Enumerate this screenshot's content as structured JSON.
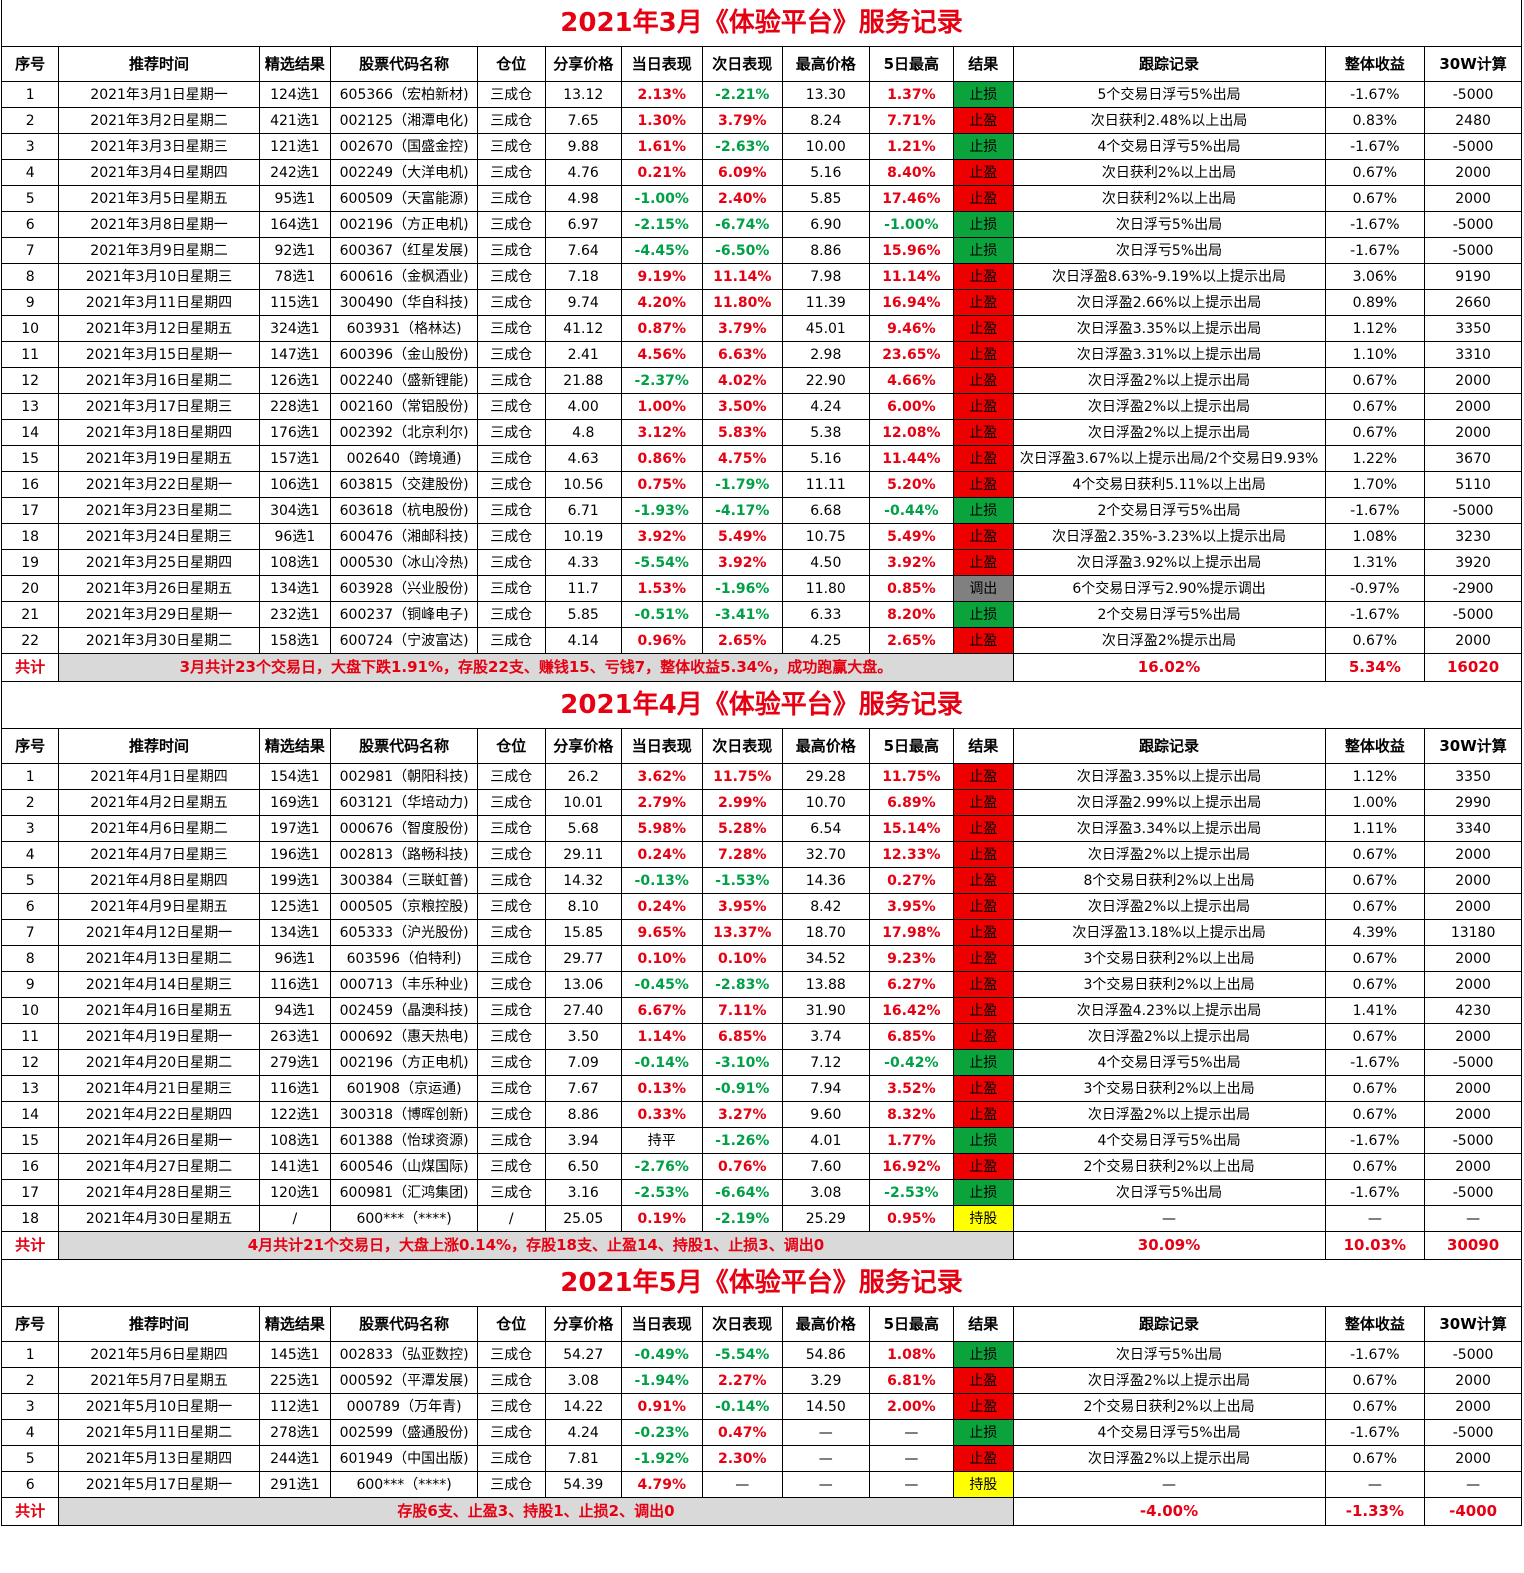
{
  "colors": {
    "red": "#e60012",
    "green": "#00a046",
    "win": "#ee0000",
    "loss": "#0aa33c",
    "out": "#808080",
    "hold": "#ffff00",
    "note_bg": "#d9d9d9"
  },
  "headers": [
    "序号",
    "推荐时间",
    "精选结果",
    "股票代码名称",
    "仓位",
    "分享价格",
    "当日表现",
    "次日表现",
    "最高价格",
    "5日最高",
    "结果",
    "跟踪记录",
    "整体收益",
    "30W计算"
  ],
  "sections": [
    {
      "title": "2021年3月《体验平台》服务记录",
      "rows": [
        [
          "1",
          "2021年3月1日星期一",
          "124选1",
          "605366（宏柏新材)",
          "三成仓",
          "13.12",
          "2.13%",
          "-2.21%",
          "13.30",
          "1.37%",
          "止损",
          "5个交易日浮亏5%出局",
          "-1.67%",
          "-5000"
        ],
        [
          "2",
          "2021年3月2日星期二",
          "421选1",
          "002125（湘潭电化)",
          "三成仓",
          "7.65",
          "1.30%",
          "3.79%",
          "8.24",
          "7.71%",
          "止盈",
          "次日获利2.48%以上出局",
          "0.83%",
          "2480"
        ],
        [
          "3",
          "2021年3月3日星期三",
          "121选1",
          "002670（国盛金控)",
          "三成仓",
          "9.88",
          "1.61%",
          "-2.63%",
          "10.00",
          "1.21%",
          "止损",
          "4个交易日浮亏5%出局",
          "-1.67%",
          "-5000"
        ],
        [
          "4",
          "2021年3月4日星期四",
          "242选1",
          "002249（大洋电机)",
          "三成仓",
          "4.76",
          "0.21%",
          "6.09%",
          "5.16",
          "8.40%",
          "止盈",
          "次日获利2%以上出局",
          "0.67%",
          "2000"
        ],
        [
          "5",
          "2021年3月5日星期五",
          "95选1",
          "600509（天富能源)",
          "三成仓",
          "4.98",
          "-1.00%",
          "2.40%",
          "5.85",
          "17.46%",
          "止盈",
          "次日获利2%以上出局",
          "0.67%",
          "2000"
        ],
        [
          "6",
          "2021年3月8日星期一",
          "164选1",
          "002196（方正电机)",
          "三成仓",
          "6.97",
          "-2.15%",
          "-6.74%",
          "6.90",
          "-1.00%",
          "止损",
          "次日浮亏5%出局",
          "-1.67%",
          "-5000"
        ],
        [
          "7",
          "2021年3月9日星期二",
          "92选1",
          "600367（红星发展)",
          "三成仓",
          "7.64",
          "-4.45%",
          "-6.50%",
          "8.86",
          "15.96%",
          "止损",
          "次日浮亏5%出局",
          "-1.67%",
          "-5000"
        ],
        [
          "8",
          "2021年3月10日星期三",
          "78选1",
          "600616（金枫酒业)",
          "三成仓",
          "7.18",
          "9.19%",
          "11.14%",
          "7.98",
          "11.14%",
          "止盈",
          "次日浮盈8.63%-9.19%以上提示出局",
          "3.06%",
          "9190"
        ],
        [
          "9",
          "2021年3月11日星期四",
          "115选1",
          "300490（华自科技)",
          "三成仓",
          "9.74",
          "4.20%",
          "11.80%",
          "11.39",
          "16.94%",
          "止盈",
          "次日浮盈2.66%以上提示出局",
          "0.89%",
          "2660"
        ],
        [
          "10",
          "2021年3月12日星期五",
          "324选1",
          "603931（格林达)",
          "三成仓",
          "41.12",
          "0.87%",
          "3.79%",
          "45.01",
          "9.46%",
          "止盈",
          "次日浮盈3.35%以上提示出局",
          "1.12%",
          "3350"
        ],
        [
          "11",
          "2021年3月15日星期一",
          "147选1",
          "600396（金山股份)",
          "三成仓",
          "2.41",
          "4.56%",
          "6.63%",
          "2.98",
          "23.65%",
          "止盈",
          "次日浮盈3.31%以上提示出局",
          "1.10%",
          "3310"
        ],
        [
          "12",
          "2021年3月16日星期二",
          "126选1",
          "002240（盛新锂能)",
          "三成仓",
          "21.88",
          "-2.37%",
          "4.02%",
          "22.90",
          "4.66%",
          "止盈",
          "次日浮盈2%以上提示出局",
          "0.67%",
          "2000"
        ],
        [
          "13",
          "2021年3月17日星期三",
          "228选1",
          "002160（常铝股份)",
          "三成仓",
          "4.00",
          "1.00%",
          "3.50%",
          "4.24",
          "6.00%",
          "止盈",
          "次日浮盈2%以上提示出局",
          "0.67%",
          "2000"
        ],
        [
          "14",
          "2021年3月18日星期四",
          "176选1",
          "002392（北京利尔)",
          "三成仓",
          "4.8",
          "3.12%",
          "5.83%",
          "5.38",
          "12.08%",
          "止盈",
          "次日浮盈2%以上提示出局",
          "0.67%",
          "2000"
        ],
        [
          "15",
          "2021年3月19日星期五",
          "157选1",
          "002640（跨境通)",
          "三成仓",
          "4.63",
          "0.86%",
          "4.75%",
          "5.16",
          "11.44%",
          "止盈",
          "次日浮盈3.67%以上提示出局/2个交易日9.93%",
          "1.22%",
          "3670"
        ],
        [
          "16",
          "2021年3月22日星期一",
          "106选1",
          "603815（交建股份)",
          "三成仓",
          "10.56",
          "0.75%",
          "-1.79%",
          "11.11",
          "5.20%",
          "止盈",
          "4个交易日获利5.11%以上出局",
          "1.70%",
          "5110"
        ],
        [
          "17",
          "2021年3月23日星期二",
          "304选1",
          "603618（杭电股份)",
          "三成仓",
          "6.71",
          "-1.93%",
          "-4.17%",
          "6.68",
          "-0.44%",
          "止损",
          "2个交易日浮亏5%出局",
          "-1.67%",
          "-5000"
        ],
        [
          "18",
          "2021年3月24日星期三",
          "96选1",
          "600476（湘邮科技)",
          "三成仓",
          "10.19",
          "3.92%",
          "5.49%",
          "10.75",
          "5.49%",
          "止盈",
          "次日浮盈2.35%-3.23%以上提示出局",
          "1.08%",
          "3230"
        ],
        [
          "19",
          "2021年3月25日星期四",
          "108选1",
          "000530（冰山冷热)",
          "三成仓",
          "4.33",
          "-5.54%",
          "3.92%",
          "4.50",
          "3.92%",
          "止盈",
          "次日浮盈3.92%以上提示出局",
          "1.31%",
          "3920"
        ],
        [
          "20",
          "2021年3月26日星期五",
          "134选1",
          "603928（兴业股份)",
          "三成仓",
          "11.7",
          "1.53%",
          "-1.96%",
          "11.80",
          "0.85%",
          "调出",
          "6个交易日浮亏2.90%提示调出",
          "-0.97%",
          "-2900"
        ],
        [
          "21",
          "2021年3月29日星期一",
          "232选1",
          "600237（铜峰电子)",
          "三成仓",
          "5.85",
          "-0.51%",
          "-3.41%",
          "6.33",
          "8.20%",
          "止损",
          "2个交易日浮亏5%出局",
          "-1.67%",
          "-5000"
        ],
        [
          "22",
          "2021年3月30日星期二",
          "158选1",
          "600724（宁波富达)",
          "三成仓",
          "4.14",
          "0.96%",
          "2.65%",
          "4.25",
          "2.65%",
          "止盈",
          "次日浮盈2%提示出局",
          "0.67%",
          "2000"
        ]
      ],
      "summary": {
        "label": "共计",
        "note": "3月共计23个交易日，大盘下跌1.91%，存股22支、赚钱15、亏钱7，整体收益5.34%，成功跑赢大盘。",
        "track": "16.02%",
        "gain": "5.34%",
        "calc": "16020"
      }
    },
    {
      "title": "2021年4月《体验平台》服务记录",
      "rows": [
        [
          "1",
          "2021年4月1日星期四",
          "154选1",
          "002981（朝阳科技)",
          "三成仓",
          "26.2",
          "3.62%",
          "11.75%",
          "29.28",
          "11.75%",
          "止盈",
          "次日浮盈3.35%以上提示出局",
          "1.12%",
          "3350"
        ],
        [
          "2",
          "2021年4月2日星期五",
          "169选1",
          "603121（华培动力)",
          "三成仓",
          "10.01",
          "2.79%",
          "2.99%",
          "10.70",
          "6.89%",
          "止盈",
          "次日浮盈2.99%以上提示出局",
          "1.00%",
          "2990"
        ],
        [
          "3",
          "2021年4月6日星期二",
          "197选1",
          "000676（智度股份)",
          "三成仓",
          "5.68",
          "5.98%",
          "5.28%",
          "6.54",
          "15.14%",
          "止盈",
          "次日浮盈3.34%以上提示出局",
          "1.11%",
          "3340"
        ],
        [
          "4",
          "2021年4月7日星期三",
          "196选1",
          "002813（路畅科技)",
          "三成仓",
          "29.11",
          "0.24%",
          "7.28%",
          "32.70",
          "12.33%",
          "止盈",
          "次日浮盈2%以上提示出局",
          "0.67%",
          "2000"
        ],
        [
          "5",
          "2021年4月8日星期四",
          "199选1",
          "300384（三联虹普)",
          "三成仓",
          "14.32",
          "-0.13%",
          "-1.53%",
          "14.36",
          "0.27%",
          "止盈",
          "8个交易日获利2%以上出局",
          "0.67%",
          "2000"
        ],
        [
          "6",
          "2021年4月9日星期五",
          "125选1",
          "000505（京粮控股)",
          "三成仓",
          "8.10",
          "0.24%",
          "3.95%",
          "8.42",
          "3.95%",
          "止盈",
          "次日浮盈2%以上提示出局",
          "0.67%",
          "2000"
        ],
        [
          "7",
          "2021年4月12日星期一",
          "134选1",
          "605333（沪光股份)",
          "三成仓",
          "15.85",
          "9.65%",
          "13.37%",
          "18.70",
          "17.98%",
          "止盈",
          "次日浮盈13.18%以上提示出局",
          "4.39%",
          "13180"
        ],
        [
          "8",
          "2021年4月13日星期二",
          "96选1",
          "603596（伯特利)",
          "三成仓",
          "29.77",
          "0.10%",
          "0.10%",
          "34.52",
          "9.23%",
          "止盈",
          "3个交易日获利2%以上出局",
          "0.67%",
          "2000"
        ],
        [
          "9",
          "2021年4月14日星期三",
          "116选1",
          "000713（丰乐种业)",
          "三成仓",
          "13.06",
          "-0.45%",
          "-2.83%",
          "13.88",
          "6.27%",
          "止盈",
          "3个交易日获利2%以上出局",
          "0.67%",
          "2000"
        ],
        [
          "10",
          "2021年4月16日星期五",
          "94选1",
          "002459（晶澳科技)",
          "三成仓",
          "27.40",
          "6.67%",
          "7.11%",
          "31.90",
          "16.42%",
          "止盈",
          "次日浮盈4.23%以上提示出局",
          "1.41%",
          "4230"
        ],
        [
          "11",
          "2021年4月19日星期一",
          "263选1",
          "000692（惠天热电)",
          "三成仓",
          "3.50",
          "1.14%",
          "6.85%",
          "3.74",
          "6.85%",
          "止盈",
          "次日浮盈2%以上提示出局",
          "0.67%",
          "2000"
        ],
        [
          "12",
          "2021年4月20日星期二",
          "279选1",
          "002196（方正电机)",
          "三成仓",
          "7.09",
          "-0.14%",
          "-3.10%",
          "7.12",
          "-0.42%",
          "止损",
          "4个交易日浮亏5%出局",
          "-1.67%",
          "-5000"
        ],
        [
          "13",
          "2021年4月21日星期三",
          "116选1",
          "601908（京运通)",
          "三成仓",
          "7.67",
          "0.13%",
          "-0.91%",
          "7.94",
          "3.52%",
          "止盈",
          "3个交易日获利2%以上出局",
          "0.67%",
          "2000"
        ],
        [
          "14",
          "2021年4月22日星期四",
          "122选1",
          "300318（博晖创新)",
          "三成仓",
          "8.86",
          "0.33%",
          "3.27%",
          "9.60",
          "8.32%",
          "止盈",
          "次日浮盈2%以上提示出局",
          "0.67%",
          "2000"
        ],
        [
          "15",
          "2021年4月26日星期一",
          "108选1",
          "601388（怡球资源)",
          "三成仓",
          "3.94",
          "持平",
          "-1.26%",
          "4.01",
          "1.77%",
          "止损",
          "4个交易日浮亏5%出局",
          "-1.67%",
          "-5000"
        ],
        [
          "16",
          "2021年4月27日星期二",
          "141选1",
          "600546（山煤国际)",
          "三成仓",
          "6.50",
          "-2.76%",
          "0.76%",
          "7.60",
          "16.92%",
          "止盈",
          "2个交易日获利2%以上出局",
          "0.67%",
          "2000"
        ],
        [
          "17",
          "2021年4月28日星期三",
          "120选1",
          "600981（汇鸿集团)",
          "三成仓",
          "3.16",
          "-2.53%",
          "-6.64%",
          "3.08",
          "-2.53%",
          "止损",
          "次日浮亏5%出局",
          "-1.67%",
          "-5000"
        ],
        [
          "18",
          "2021年4月30日星期五",
          "/",
          "600***（****)",
          "/",
          "25.05",
          "0.19%",
          "-2.19%",
          "25.29",
          "0.95%",
          "持股",
          "—",
          "—",
          "—"
        ]
      ],
      "summary": {
        "label": "共计",
        "note": "4月共计21个交易日，大盘上涨0.14%，存股18支、止盈14、持股1、止损3、调出0",
        "track": "30.09%",
        "gain": "10.03%",
        "calc": "30090"
      }
    },
    {
      "title": "2021年5月《体验平台》服务记录",
      "rows": [
        [
          "1",
          "2021年5月6日星期四",
          "145选1",
          "002833（弘亚数控)",
          "三成仓",
          "54.27",
          "-0.49%",
          "-5.54%",
          "54.86",
          "1.08%",
          "止损",
          "次日浮亏5%出局",
          "-1.67%",
          "-5000"
        ],
        [
          "2",
          "2021年5月7日星期五",
          "225选1",
          "000592（平潭发展)",
          "三成仓",
          "3.08",
          "-1.94%",
          "2.27%",
          "3.29",
          "6.81%",
          "止盈",
          "次日浮盈2%以上提示出局",
          "0.67%",
          "2000"
        ],
        [
          "3",
          "2021年5月10日星期一",
          "112选1",
          "000789（万年青)",
          "三成仓",
          "14.22",
          "0.91%",
          "-0.14%",
          "14.50",
          "2.00%",
          "止盈",
          "2个交易日获利2%以上出局",
          "0.67%",
          "2000"
        ],
        [
          "4",
          "2021年5月11日星期二",
          "278选1",
          "002599（盛通股份)",
          "三成仓",
          "4.24",
          "-0.23%",
          "0.47%",
          "—",
          "—",
          "止损",
          "4个交易日浮亏5%出局",
          "-1.67%",
          "-5000"
        ],
        [
          "5",
          "2021年5月13日星期四",
          "244选1",
          "601949（中国出版)",
          "三成仓",
          "7.81",
          "-1.92%",
          "2.30%",
          "—",
          "—",
          "止盈",
          "次日浮盈2%以上提示出局",
          "0.67%",
          "2000"
        ],
        [
          "6",
          "2021年5月17日星期一",
          "291选1",
          "600***（****)",
          "三成仓",
          "54.39",
          "4.79%",
          "—",
          "—",
          "—",
          "持股",
          "—",
          "—",
          "—"
        ]
      ],
      "summary": {
        "label": "共计",
        "note": "存股6支、止盈3、持股1、止损2、调出0",
        "track": "-4.00%",
        "gain": "-1.33%",
        "calc": "-4000"
      }
    }
  ]
}
